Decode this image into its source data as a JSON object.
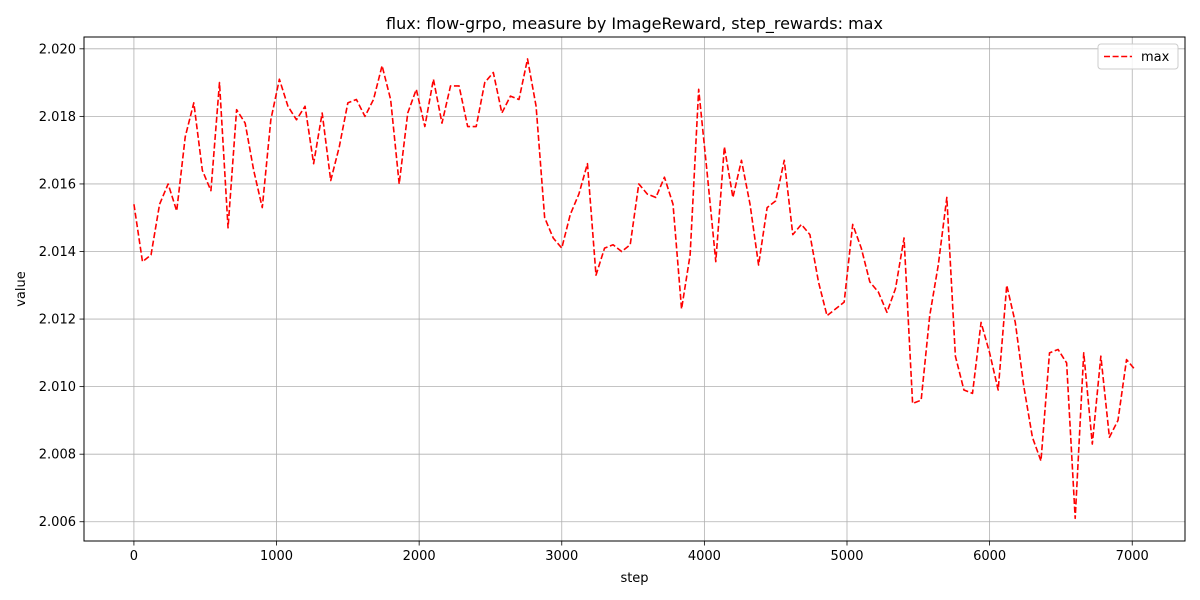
{
  "chart_data": {
    "type": "line",
    "title": "flux: flow-grpo, measure by ImageReward, step_rewards: max",
    "xlabel": "step",
    "ylabel": "value",
    "xlim": [
      -350,
      7370
    ],
    "ylim": [
      2.00543,
      2.02035
    ],
    "xticks": [
      0,
      1000,
      2000,
      3000,
      4000,
      5000,
      6000,
      7000
    ],
    "xtick_labels": [
      "0",
      "1000",
      "2000",
      "3000",
      "4000",
      "5000",
      "6000",
      "7000"
    ],
    "yticks": [
      2.006,
      2.008,
      2.01,
      2.012,
      2.014,
      2.016,
      2.018,
      2.02
    ],
    "ytick_labels": [
      "2.006",
      "2.008",
      "2.010",
      "2.012",
      "2.014",
      "2.016",
      "2.018",
      "2.020"
    ],
    "grid": true,
    "legend_position": "upper right",
    "series": [
      {
        "name": "max",
        "color": "#ff0000",
        "linestyle": "dashed",
        "x": [
          0,
          60,
          120,
          180,
          240,
          300,
          360,
          420,
          480,
          540,
          600,
          660,
          720,
          780,
          840,
          900,
          960,
          1020,
          1080,
          1140,
          1200,
          1260,
          1320,
          1380,
          1440,
          1500,
          1560,
          1620,
          1680,
          1740,
          1800,
          1860,
          1920,
          1980,
          2040,
          2100,
          2160,
          2220,
          2280,
          2340,
          2400,
          2460,
          2520,
          2580,
          2640,
          2700,
          2760,
          2820,
          2880,
          2940,
          3000,
          3060,
          3120,
          3180,
          3240,
          3300,
          3360,
          3420,
          3480,
          3540,
          3600,
          3660,
          3720,
          3780,
          3840,
          3900,
          3960,
          4020,
          4080,
          4140,
          4200,
          4260,
          4320,
          4380,
          4440,
          4500,
          4560,
          4620,
          4680,
          4740,
          4800,
          4860,
          4920,
          4980,
          5040,
          5100,
          5160,
          5220,
          5280,
          5340,
          5400,
          5460,
          5520,
          5580,
          5640,
          5700,
          5760,
          5820,
          5880,
          5940,
          6000,
          6060,
          6120,
          6180,
          6240,
          6300,
          6360,
          6420,
          6480,
          6540,
          6600,
          6660,
          6720,
          6780,
          6840,
          6900,
          6960,
          7020
        ],
        "values": [
          2.0154,
          2.0137,
          2.0139,
          2.0154,
          2.016,
          2.0152,
          2.0174,
          2.0184,
          2.0164,
          2.0158,
          2.019,
          2.0147,
          2.0182,
          2.0178,
          2.0164,
          2.0153,
          2.0179,
          2.0191,
          2.0183,
          2.0179,
          2.0183,
          2.0166,
          2.0181,
          2.0161,
          2.0171,
          2.0184,
          2.0185,
          2.018,
          2.0185,
          2.0195,
          2.0185,
          2.016,
          2.0181,
          2.0188,
          2.0177,
          2.0191,
          2.0178,
          2.0189,
          2.0189,
          2.0177,
          2.0177,
          2.019,
          2.0193,
          2.0181,
          2.0186,
          2.0185,
          2.0197,
          2.0183,
          2.015,
          2.0144,
          2.0141,
          2.0151,
          2.0157,
          2.0166,
          2.0133,
          2.0141,
          2.0142,
          2.014,
          2.0142,
          2.016,
          2.0157,
          2.0156,
          2.0162,
          2.0154,
          2.0123,
          2.0139,
          2.0188,
          2.0163,
          2.0137,
          2.0171,
          2.0156,
          2.0167,
          2.0154,
          2.0136,
          2.0153,
          2.0155,
          2.0167,
          2.0145,
          2.0148,
          2.0145,
          2.0131,
          2.0121,
          2.0123,
          2.0125,
          2.0148,
          2.0141,
          2.0131,
          2.0128,
          2.0122,
          2.0129,
          2.0144,
          2.0095,
          2.0096,
          2.0121,
          2.0136,
          2.0156,
          2.0109,
          2.0099,
          2.0098,
          2.0119,
          2.011,
          2.0099,
          2.013,
          2.0119,
          2.01,
          2.0085,
          2.0078,
          2.011,
          2.0111,
          2.0107,
          2.0061,
          2.011,
          2.0083,
          2.0109,
          2.0085,
          2.009,
          2.0108,
          2.0105
        ]
      }
    ]
  }
}
